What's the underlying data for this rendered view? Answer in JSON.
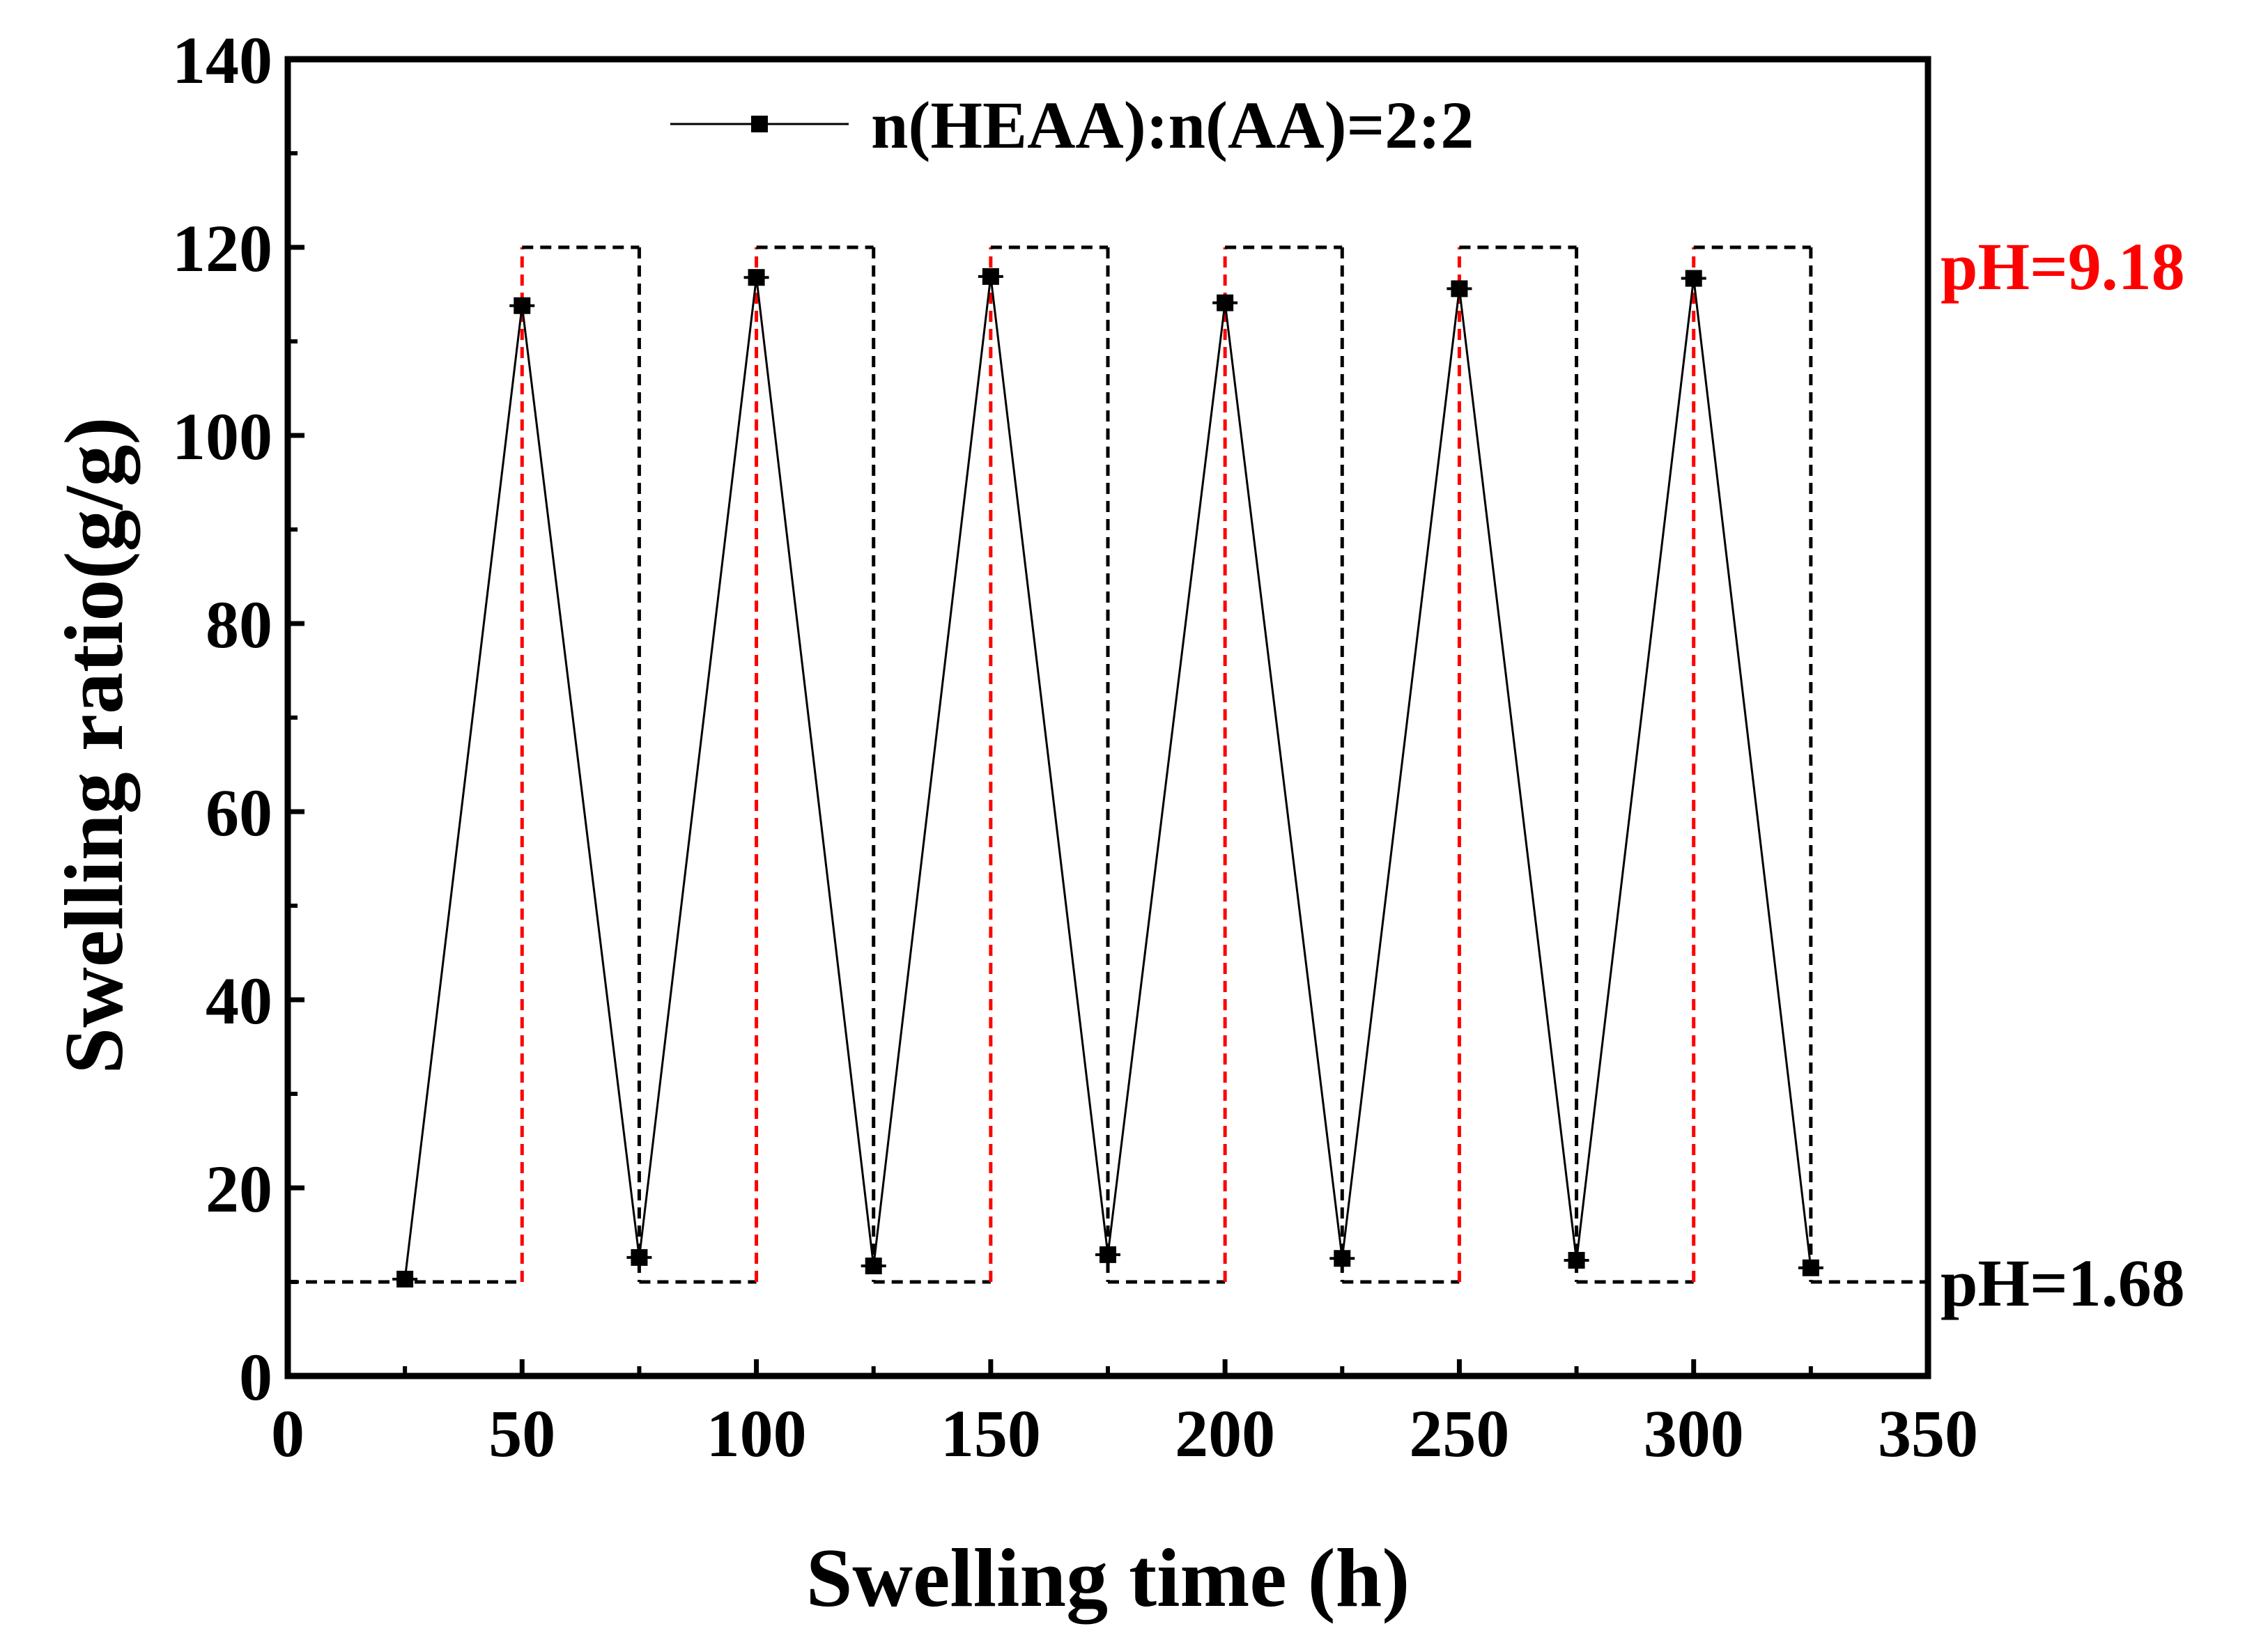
{
  "chart_data": {
    "type": "line",
    "title": "",
    "xlabel": "Swelling time (h)",
    "ylabel": "Swelling ratio(g/g)",
    "xlim": [
      0,
      350
    ],
    "ylim": [
      0,
      140
    ],
    "x_ticks": [
      0,
      50,
      100,
      150,
      200,
      250,
      300,
      350
    ],
    "y_ticks": [
      0,
      20,
      40,
      60,
      80,
      100,
      120,
      140
    ],
    "x_tick_labels": [
      "0",
      "50",
      "100",
      "150",
      "200",
      "250",
      "300",
      "350"
    ],
    "y_tick_labels": [
      "0",
      "20",
      "40",
      "60",
      "80",
      "100",
      "120",
      "140"
    ],
    "grid": false,
    "legend_position": "top-center",
    "series": [
      {
        "name": "n(HEAA):n(AA)=2:2",
        "color": "#000000",
        "marker": "square",
        "x": [
          25,
          50,
          75,
          100,
          125,
          150,
          175,
          200,
          225,
          250,
          275,
          300,
          325
        ],
        "y": [
          10.3,
          113.8,
          12.6,
          116.8,
          11.7,
          116.9,
          12.9,
          114.1,
          12.5,
          115.6,
          12.3,
          116.7,
          11.5
        ]
      }
    ],
    "ph_levels": {
      "high": {
        "label": "pH=9.18",
        "value": 120,
        "color": "#ff0000"
      },
      "low": {
        "label": "pH=1.68",
        "value": 10,
        "color": "#000000"
      }
    },
    "ph_switch_rises": [
      50,
      100,
      150,
      200,
      250,
      300
    ],
    "ph_switch_falls": [
      75,
      125,
      175,
      225,
      275,
      325
    ],
    "ph_step_path": [
      [
        0,
        10
      ],
      [
        50,
        10
      ],
      [
        50,
        120
      ],
      [
        75,
        120
      ],
      [
        75,
        10
      ],
      [
        100,
        10
      ],
      [
        100,
        120
      ],
      [
        125,
        120
      ],
      [
        125,
        10
      ],
      [
        150,
        10
      ],
      [
        150,
        120
      ],
      [
        175,
        120
      ],
      [
        175,
        10
      ],
      [
        200,
        10
      ],
      [
        200,
        120
      ],
      [
        225,
        120
      ],
      [
        225,
        10
      ],
      [
        250,
        10
      ],
      [
        250,
        120
      ],
      [
        275,
        120
      ],
      [
        275,
        10
      ],
      [
        300,
        10
      ],
      [
        300,
        120
      ],
      [
        325,
        120
      ],
      [
        325,
        10
      ],
      [
        350,
        10
      ]
    ]
  }
}
